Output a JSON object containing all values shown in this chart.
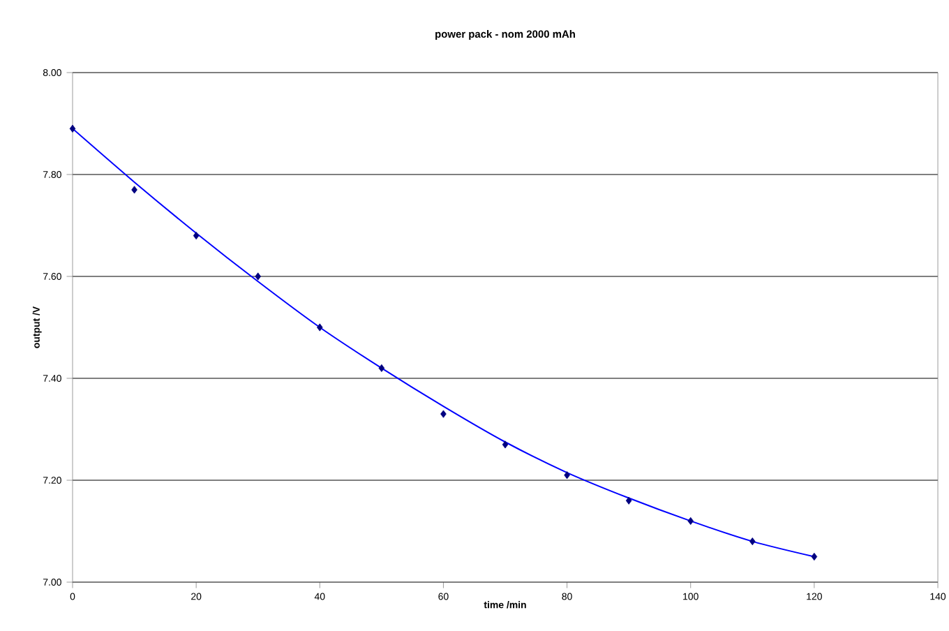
{
  "chart_data": {
    "type": "scatter",
    "title": "power pack - nom 2000 mAh",
    "xlabel": "time /min",
    "ylabel": "output /V",
    "xlim": [
      0,
      140
    ],
    "xticks": [
      0,
      20,
      40,
      60,
      80,
      100,
      120,
      140
    ],
    "ylim": [
      7,
      8
    ],
    "yticks": [
      {
        "value": 7,
        "label": "7.00"
      },
      {
        "value": 7.2,
        "label": "7.20"
      },
      {
        "value": 7.4,
        "label": "7.40"
      },
      {
        "value": 7.6,
        "label": "7.60"
      },
      {
        "value": 7.8,
        "label": "7.80"
      },
      {
        "value": 8,
        "label": "8.00"
      }
    ],
    "grid": "y",
    "series": [
      {
        "type": "line",
        "color": "#0000ff",
        "marker": "none",
        "x": [
          0,
          10,
          20,
          30,
          40,
          50,
          60,
          70,
          80,
          90,
          100,
          110,
          120
        ],
        "values": [
          7.89,
          7.785,
          7.685,
          7.59,
          7.5,
          7.42,
          7.345,
          7.275,
          7.215,
          7.165,
          7.12,
          7.08,
          7.05
        ]
      },
      {
        "color": "#000080",
        "marker": "diamond",
        "x": [
          0,
          10,
          20,
          30,
          40,
          50,
          60,
          70,
          80,
          90,
          100,
          110,
          120
        ],
        "values": [
          7.89,
          7.77,
          7.68,
          7.6,
          7.5,
          7.42,
          7.33,
          7.27,
          7.21,
          7.16,
          7.12,
          7.08,
          7.05
        ]
      }
    ]
  }
}
